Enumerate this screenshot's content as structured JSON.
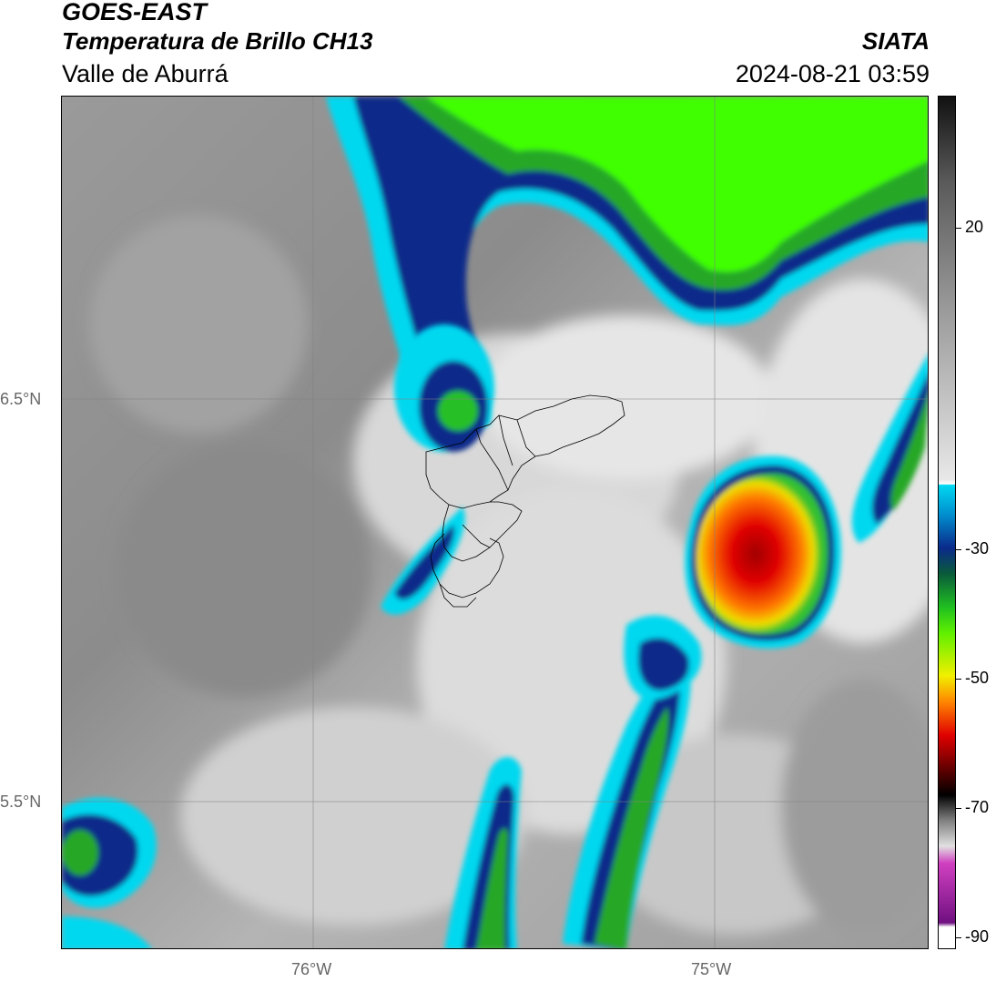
{
  "header": {
    "title": "GOES-EAST",
    "subtitle": "Temperatura de Brillo CH13",
    "region": "Valle de Aburrá",
    "organization": "SIATA",
    "datetime": "2024-08-21 03:59"
  },
  "map": {
    "latitude_labels": [
      "6.5°N",
      "5.5°N"
    ],
    "longitude_labels": [
      "76°W",
      "75°W"
    ]
  },
  "colorbar": {
    "tick_labels": [
      "20",
      "-30",
      "-50",
      "-70",
      "-90"
    ],
    "colors": {
      "warm_top": "#111111",
      "light_gray": "#e8e8e8",
      "cyan": "#00d8f0",
      "dark_blue": "#0a2a8a",
      "green": "#20c020",
      "yellow": "#f0f000",
      "orange": "#ff8800",
      "red": "#e00000",
      "black": "#000000",
      "magenta": "#d040c0",
      "purple": "#701080"
    }
  }
}
